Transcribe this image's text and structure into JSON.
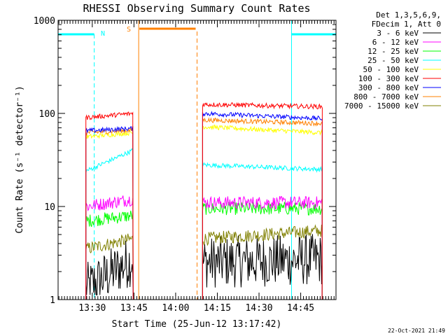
{
  "chart_data": {
    "type": "line",
    "title": "RHESSI Observing Summary Count Rates",
    "xlabel": "Start Time (25-Jun-12 13:17:42)",
    "ylabel": "Count Rate (s⁻¹ detector⁻¹)",
    "y_scale": "log",
    "ylim": [
      1,
      1000
    ],
    "xlim": [
      "13:17:42",
      "14:57:42"
    ],
    "x_tick_labels": [
      "13:30",
      "13:45",
      "14:00",
      "14:15",
      "14:30",
      "14:45"
    ],
    "y_tick_labels": [
      "1",
      "10",
      "100",
      "1000"
    ],
    "legend_header": [
      "Det 1,3,5,6,9,",
      "FDecim 1, Att 0"
    ],
    "legend_position": "right",
    "series": [
      {
        "name": "3 - 6 keV",
        "color": "#000000",
        "segments": [
          {
            "start": "13:27:42",
            "end": "13:44:42",
            "y_start": 1.3,
            "y_end": 2.7
          },
          {
            "start": "14:09:42",
            "end": "14:52:42",
            "y_start": 2.5,
            "y_end": 2.7
          }
        ]
      },
      {
        "name": "6 - 12 keV",
        "color": "#ff00ff",
        "segments": [
          {
            "start": "13:27:42",
            "end": "13:44:42",
            "y_start": 10,
            "y_end": 12
          },
          {
            "start": "14:09:42",
            "end": "14:52:42",
            "y_start": 11,
            "y_end": 11
          }
        ]
      },
      {
        "name": "12 - 25 keV",
        "color": "#00ff00",
        "segments": [
          {
            "start": "13:27:42",
            "end": "13:44:42",
            "y_start": 7,
            "y_end": 8
          },
          {
            "start": "14:09:42",
            "end": "14:52:42",
            "y_start": 9.5,
            "y_end": 9.5
          }
        ]
      },
      {
        "name": "25 - 50 keV",
        "color": "#00ffff",
        "segments": [
          {
            "start": "13:27:42",
            "end": "13:44:42",
            "y_start": 24,
            "y_end": 40
          },
          {
            "start": "14:09:42",
            "end": "14:52:42",
            "y_start": 28,
            "y_end": 25
          }
        ]
      },
      {
        "name": "50 - 100 keV",
        "color": "#ffff00",
        "segments": [
          {
            "start": "13:27:42",
            "end": "13:44:42",
            "y_start": 56,
            "y_end": 62
          },
          {
            "start": "14:09:42",
            "end": "14:52:42",
            "y_start": 72,
            "y_end": 62
          }
        ]
      },
      {
        "name": "100 - 300 keV",
        "color": "#ff0000",
        "segments": [
          {
            "start": "13:27:42",
            "end": "13:44:42",
            "y_start": 90,
            "y_end": 100
          },
          {
            "start": "14:09:42",
            "end": "14:52:42",
            "y_start": 125,
            "y_end": 118
          }
        ]
      },
      {
        "name": "300 - 800 keV",
        "color": "#0000ff",
        "segments": [
          {
            "start": "13:27:42",
            "end": "13:44:42",
            "y_start": 65,
            "y_end": 69
          },
          {
            "start": "14:09:42",
            "end": "14:52:42",
            "y_start": 100,
            "y_end": 88
          }
        ]
      },
      {
        "name": "800 - 7000 keV",
        "color": "#ff8000",
        "segments": [
          {
            "start": "13:27:42",
            "end": "13:44:42",
            "y_start": 62,
            "y_end": 66
          },
          {
            "start": "14:09:42",
            "end": "14:52:42",
            "y_start": 85,
            "y_end": 78
          }
        ]
      },
      {
        "name": "7000 - 15000 keV",
        "color": "#808000",
        "segments": [
          {
            "start": "13:27:42",
            "end": "13:44:42",
            "y_start": 3.5,
            "y_end": 4.5
          },
          {
            "start": "14:09:42",
            "end": "14:52:42",
            "y_start": 4.5,
            "y_end": 5.5
          }
        ]
      }
    ],
    "annotations": {
      "night_label": "N",
      "saa_label": "S",
      "night_intervals": [
        [
          "13:17:42",
          "13:30:42"
        ],
        [
          "14:41:42",
          "14:57:42"
        ]
      ],
      "night_color": "#00ffff",
      "saa_intervals": [
        [
          "13:46:42",
          "14:07:42"
        ]
      ],
      "saa_color": "#ff8000"
    },
    "footer_timestamp": "22-Oct-2021 21:49"
  }
}
